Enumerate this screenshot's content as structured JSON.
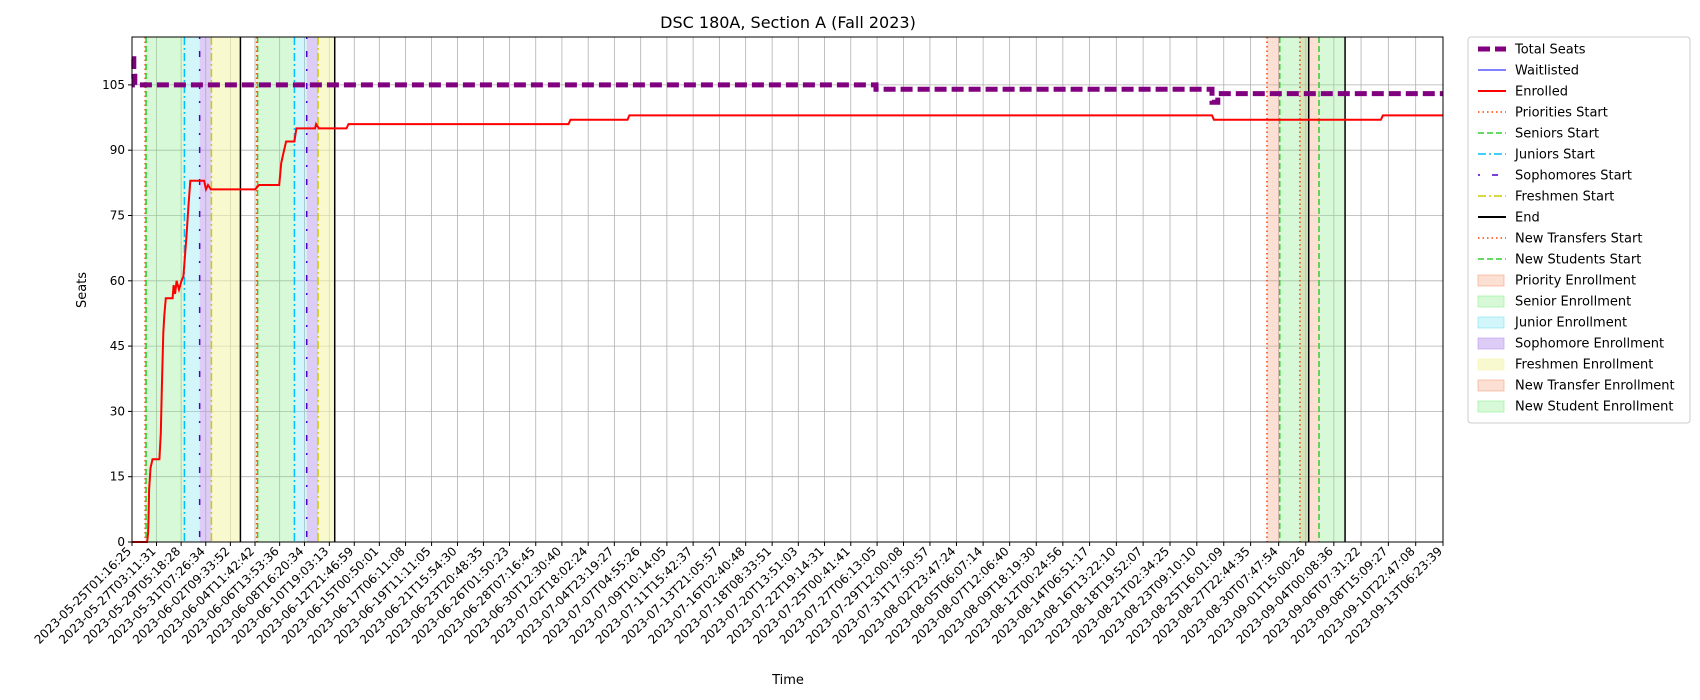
{
  "chart_data": {
    "type": "line",
    "title": "DSC 180A, Section A (Fall 2023)",
    "xlabel": "Time",
    "ylabel": "Seats",
    "ylim": [
      0,
      116
    ],
    "yticks": [
      0,
      15,
      30,
      45,
      60,
      75,
      90,
      105
    ],
    "grid": true,
    "legend_position": "outside-right",
    "xlim": [
      "2023-05-25T01:16:25",
      "2023-09-13T06:23:39"
    ],
    "x_tick_labels": [
      "2023-05-25T01:16:25",
      "2023-05-27T03:11:31",
      "2023-05-29T05:18:28",
      "2023-05-31T07:26:34",
      "2023-06-02T09:33:52",
      "2023-06-04T11:42:42",
      "2023-06-06T13:53:36",
      "2023-06-08T16:20:34",
      "2023-06-10T19:03:13",
      "2023-06-12T21:46:59",
      "2023-06-15T00:50:01",
      "2023-06-17T06:11:08",
      "2023-06-19T11:11:05",
      "2023-06-21T15:54:30",
      "2023-06-23T20:48:35",
      "2023-06-26T01:50:23",
      "2023-06-28T07:16:45",
      "2023-06-30T12:30:40",
      "2023-07-02T18:02:24",
      "2023-07-04T23:19:27",
      "2023-07-07T04:55:26",
      "2023-07-09T10:14:05",
      "2023-07-11T15:42:37",
      "2023-07-13T21:05:57",
      "2023-07-16T02:40:48",
      "2023-07-18T08:33:51",
      "2023-07-20T13:51:03",
      "2023-07-22T19:14:31",
      "2023-07-25T00:41:41",
      "2023-07-27T06:13:05",
      "2023-07-29T12:00:08",
      "2023-07-31T17:50:57",
      "2023-08-02T23:47:24",
      "2023-08-05T06:07:14",
      "2023-08-07T12:06:40",
      "2023-08-09T18:19:30",
      "2023-08-12T00:24:56",
      "2023-08-14T06:51:17",
      "2023-08-16T13:22:10",
      "2023-08-18T19:52:07",
      "2023-08-21T02:34:25",
      "2023-08-23T09:10:10",
      "2023-08-25T16:01:09",
      "2023-08-27T22:44:35",
      "2023-08-30T07:47:54",
      "2023-09-01T15:00:26",
      "2023-09-04T00:08:36",
      "2023-09-06T07:31:22",
      "2023-09-08T15:09:27",
      "2023-09-10T22:47:08",
      "2023-09-13T06:23:39"
    ],
    "series": [
      {
        "name": "Total Seats",
        "color": "#800080",
        "style": "dashed-thick",
        "points": [
          [
            "2023-05-25T01:16:25",
            111
          ],
          [
            "2023-05-25T05:00:00",
            111
          ],
          [
            "2023-05-25T05:00:00",
            107
          ],
          [
            "2023-05-25T07:00:00",
            107
          ],
          [
            "2023-05-25T07:00:00",
            105
          ],
          [
            "2023-07-27T04:00:00",
            105
          ],
          [
            "2023-07-27T04:00:00",
            104
          ],
          [
            "2023-08-24T16:00:00",
            104
          ],
          [
            "2023-08-24T16:00:00",
            101
          ],
          [
            "2023-08-25T04:00:00",
            101
          ],
          [
            "2023-08-25T04:00:00",
            103
          ],
          [
            "2023-09-13T06:23:39",
            103
          ]
        ]
      },
      {
        "name": "Waitlisted",
        "color": "#0000ff",
        "style": "solid-thin",
        "points": [
          [
            "2023-05-25T01:16:25",
            0
          ],
          [
            "2023-09-13T06:23:39",
            0
          ]
        ]
      },
      {
        "name": "Enrolled",
        "color": "#ff0000",
        "style": "solid",
        "points": [
          [
            "2023-05-25T01:16:25",
            0
          ],
          [
            "2023-05-26T08:00:00",
            0
          ],
          [
            "2023-05-26T10:00:00",
            2
          ],
          [
            "2023-05-26T11:00:00",
            6
          ],
          [
            "2023-05-26T12:00:00",
            12
          ],
          [
            "2023-05-26T15:00:00",
            17
          ],
          [
            "2023-05-26T19:00:00",
            19
          ],
          [
            "2023-05-27T09:00:00",
            19
          ],
          [
            "2023-05-27T12:00:00",
            25
          ],
          [
            "2023-05-27T14:00:00",
            35
          ],
          [
            "2023-05-27T17:00:00",
            48
          ],
          [
            "2023-05-27T19:00:00",
            52
          ],
          [
            "2023-05-27T22:00:00",
            56
          ],
          [
            "2023-05-28T12:00:00",
            56
          ],
          [
            "2023-05-28T14:00:00",
            59
          ],
          [
            "2023-05-28T17:00:00",
            57
          ],
          [
            "2023-05-28T20:00:00",
            60
          ],
          [
            "2023-05-29T01:00:00",
            58
          ],
          [
            "2023-05-29T06:00:00",
            60
          ],
          [
            "2023-05-29T10:00:00",
            61
          ],
          [
            "2023-05-29T16:00:00",
            70
          ],
          [
            "2023-05-29T20:00:00",
            77
          ],
          [
            "2023-05-30T00:00:00",
            83
          ],
          [
            "2023-05-31T04:00:00",
            83
          ],
          [
            "2023-05-31T08:00:00",
            81
          ],
          [
            "2023-05-31T12:00:00",
            82
          ],
          [
            "2023-05-31T18:00:00",
            81
          ],
          [
            "2023-06-04T12:00:00",
            81
          ],
          [
            "2023-06-04T20:00:00",
            82
          ],
          [
            "2023-06-06T13:00:00",
            82
          ],
          [
            "2023-06-06T17:00:00",
            87
          ],
          [
            "2023-06-06T21:00:00",
            89
          ],
          [
            "2023-06-07T03:00:00",
            92
          ],
          [
            "2023-06-07T20:00:00",
            92
          ],
          [
            "2023-06-08T00:00:00",
            95
          ],
          [
            "2023-06-09T14:00:00",
            95
          ],
          [
            "2023-06-09T16:00:00",
            96
          ],
          [
            "2023-06-09T22:00:00",
            95
          ],
          [
            "2023-06-12T06:00:00",
            95
          ],
          [
            "2023-06-12T10:00:00",
            96
          ],
          [
            "2023-07-01T02:00:00",
            96
          ],
          [
            "2023-07-01T06:00:00",
            97
          ],
          [
            "2023-07-06T02:00:00",
            97
          ],
          [
            "2023-07-06T06:00:00",
            98
          ],
          [
            "2023-08-24T16:00:00",
            98
          ],
          [
            "2023-08-24T20:00:00",
            97
          ],
          [
            "2023-09-08T00:00:00",
            97
          ],
          [
            "2023-09-08T04:00:00",
            98
          ],
          [
            "2023-09-13T06:23:39",
            98
          ]
        ]
      }
    ],
    "vertical_lines": [
      {
        "name": "Priorities Start",
        "color": "#ff4500",
        "style": "dotted",
        "x": [
          "2023-05-26T04:00:00",
          "2023-06-04T15:00:00"
        ]
      },
      {
        "name": "Seniors Start",
        "color": "#32cd32",
        "style": "dashed",
        "x": [
          "2023-05-26T06:00:00",
          "2023-06-04T17:00:00"
        ]
      },
      {
        "name": "Juniors Start",
        "color": "#00bfff",
        "style": "dashdot",
        "x": [
          "2023-05-29T12:00:00",
          "2023-06-07T20:00:00"
        ]
      },
      {
        "name": "Sophomores Start",
        "color": "#4b00cc",
        "style": "dashdot-sparse",
        "x": [
          "2023-05-30T19:00:00",
          "2023-06-08T21:00:00"
        ]
      },
      {
        "name": "Freshmen Start",
        "color": "#cccc00",
        "style": "dashdot",
        "x": [
          "2023-05-31T19:00:00",
          "2023-06-09T20:00:00"
        ]
      },
      {
        "name": "End",
        "color": "#000000",
        "style": "solid",
        "x": [
          "2023-06-03T06:00:00",
          "2023-06-11T06:00:00",
          "2023-09-01T21:00:00",
          "2023-09-04T23:00:00"
        ]
      },
      {
        "name": "New Transfers Start",
        "color": "#ff4500",
        "style": "dotted",
        "x": [
          "2023-08-29T08:00:00",
          "2023-09-01T03:00:00"
        ]
      },
      {
        "name": "New Students Start",
        "color": "#32cd32",
        "style": "dashed",
        "x": [
          "2023-08-30T10:00:00",
          "2023-09-02T18:00:00"
        ]
      }
    ],
    "shaded_periods": [
      {
        "name": "Priority Enrollment",
        "color": "#f4a582",
        "alpha": 0.35,
        "ranges": [
          [
            "2023-05-26T04:00:00",
            "2023-05-26T06:00:00"
          ],
          [
            "2023-06-04T15:00:00",
            "2023-06-04T17:00:00"
          ]
        ]
      },
      {
        "name": "Senior Enrollment",
        "color": "#90ee90",
        "alpha": 0.35,
        "ranges": [
          [
            "2023-05-26T06:00:00",
            "2023-05-29T12:00:00"
          ],
          [
            "2023-06-04T17:00:00",
            "2023-06-07T20:00:00"
          ]
        ]
      },
      {
        "name": "Junior Enrollment",
        "color": "#7fe5f0",
        "alpha": 0.35,
        "ranges": [
          [
            "2023-05-29T12:00:00",
            "2023-05-30T19:00:00"
          ],
          [
            "2023-06-07T20:00:00",
            "2023-06-08T21:00:00"
          ]
        ]
      },
      {
        "name": "Sophomore Enrollment",
        "color": "#b999ee",
        "alpha": 0.5,
        "ranges": [
          [
            "2023-05-30T19:00:00",
            "2023-05-31T19:00:00"
          ],
          [
            "2023-06-08T21:00:00",
            "2023-06-09T20:00:00"
          ]
        ]
      },
      {
        "name": "Freshmen Enrollment",
        "color": "#f5f5b0",
        "alpha": 0.6,
        "ranges": [
          [
            "2023-05-31T19:00:00",
            "2023-06-03T06:00:00"
          ],
          [
            "2023-06-09T20:00:00",
            "2023-06-11T06:00:00"
          ]
        ]
      },
      {
        "name": "New Transfer Enrollment",
        "color": "#f4a582",
        "alpha": 0.35,
        "ranges": [
          [
            "2023-08-29T08:00:00",
            "2023-08-30T10:00:00"
          ],
          [
            "2023-09-01T03:00:00",
            "2023-09-02T18:00:00"
          ]
        ]
      },
      {
        "name": "New Student Enrollment",
        "color": "#90ee90",
        "alpha": 0.35,
        "ranges": [
          [
            "2023-08-30T10:00:00",
            "2023-09-01T21:00:00"
          ],
          [
            "2023-09-02T18:00:00",
            "2023-09-04T23:00:00"
          ]
        ]
      }
    ],
    "legend": [
      {
        "label": "Total Seats",
        "kind": "line",
        "color": "#800080",
        "style": "dashed-thick"
      },
      {
        "label": "Waitlisted",
        "kind": "line",
        "color": "#0000ff",
        "style": "solid-thin"
      },
      {
        "label": "Enrolled",
        "kind": "line",
        "color": "#ff0000",
        "style": "solid"
      },
      {
        "label": "Priorities Start",
        "kind": "line",
        "color": "#ff4500",
        "style": "dotted"
      },
      {
        "label": "Seniors Start",
        "kind": "line",
        "color": "#32cd32",
        "style": "dashed"
      },
      {
        "label": "Juniors Start",
        "kind": "line",
        "color": "#00bfff",
        "style": "dashdot"
      },
      {
        "label": "Sophomores Start",
        "kind": "line",
        "color": "#4b00cc",
        "style": "dashdot-sparse"
      },
      {
        "label": "Freshmen Start",
        "kind": "line",
        "color": "#cccc00",
        "style": "dashdot"
      },
      {
        "label": "End",
        "kind": "line",
        "color": "#000000",
        "style": "solid"
      },
      {
        "label": "New Transfers Start",
        "kind": "line",
        "color": "#ff4500",
        "style": "dotted"
      },
      {
        "label": "New Students Start",
        "kind": "line",
        "color": "#32cd32",
        "style": "dashed"
      },
      {
        "label": "Priority Enrollment",
        "kind": "patch",
        "color": "#f4a582",
        "alpha": 0.35
      },
      {
        "label": "Senior Enrollment",
        "kind": "patch",
        "color": "#90ee90",
        "alpha": 0.35
      },
      {
        "label": "Junior Enrollment",
        "kind": "patch",
        "color": "#7fe5f0",
        "alpha": 0.35
      },
      {
        "label": "Sophomore Enrollment",
        "kind": "patch",
        "color": "#b999ee",
        "alpha": 0.5
      },
      {
        "label": "Freshmen Enrollment",
        "kind": "patch",
        "color": "#f5f5b0",
        "alpha": 0.6
      },
      {
        "label": "New Transfer Enrollment",
        "kind": "patch",
        "color": "#f4a582",
        "alpha": 0.35
      },
      {
        "label": "New Student Enrollment",
        "kind": "patch",
        "color": "#90ee90",
        "alpha": 0.35
      }
    ]
  }
}
